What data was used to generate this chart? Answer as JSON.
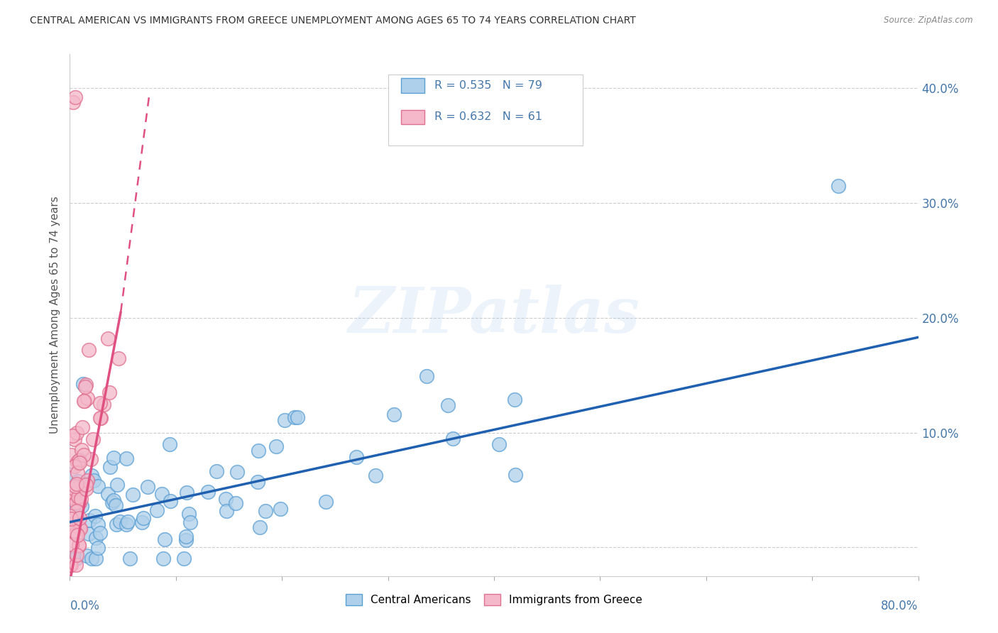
{
  "title": "CENTRAL AMERICAN VS IMMIGRANTS FROM GREECE UNEMPLOYMENT AMONG AGES 65 TO 74 YEARS CORRELATION CHART",
  "source": "Source: ZipAtlas.com",
  "ylabel": "Unemployment Among Ages 65 to 74 years",
  "yticks": [
    0.0,
    0.1,
    0.2,
    0.3,
    0.4
  ],
  "ytick_labels": [
    "",
    "10.0%",
    "20.0%",
    "30.0%",
    "40.0%"
  ],
  "xlim": [
    0.0,
    0.8
  ],
  "ylim": [
    -0.025,
    0.43
  ],
  "legend_r_blue": "R = 0.535",
  "legend_n_blue": "N = 79",
  "legend_r_pink": "R = 0.632",
  "legend_n_pink": "N = 61",
  "legend_label_blue": "Central Americans",
  "legend_label_pink": "Immigrants from Greece",
  "blue_fill": "#afd0ea",
  "blue_edge": "#5a9fd4",
  "pink_fill": "#f4b8ca",
  "pink_edge": "#e07090",
  "blue_line_color": "#2060b0",
  "pink_line_color": "#e05080",
  "watermark_text": "ZIPatlas",
  "background_color": "#ffffff",
  "grid_color": "#cccccc",
  "title_color": "#333333",
  "source_color": "#888888",
  "axis_label_color": "#4477aa",
  "blue_trend_x0": 0.0,
  "blue_trend_y0": 0.022,
  "blue_trend_x1": 0.8,
  "blue_trend_y1": 0.183,
  "pink_trend_solid_x0": 0.0,
  "pink_trend_solid_y0": -0.03,
  "pink_trend_solid_x1": 0.048,
  "pink_trend_solid_y1": 0.205,
  "pink_trend_dash_x0": 0.048,
  "pink_trend_dash_y0": 0.205,
  "pink_trend_dash_x1": 0.075,
  "pink_trend_dash_y1": 0.395
}
